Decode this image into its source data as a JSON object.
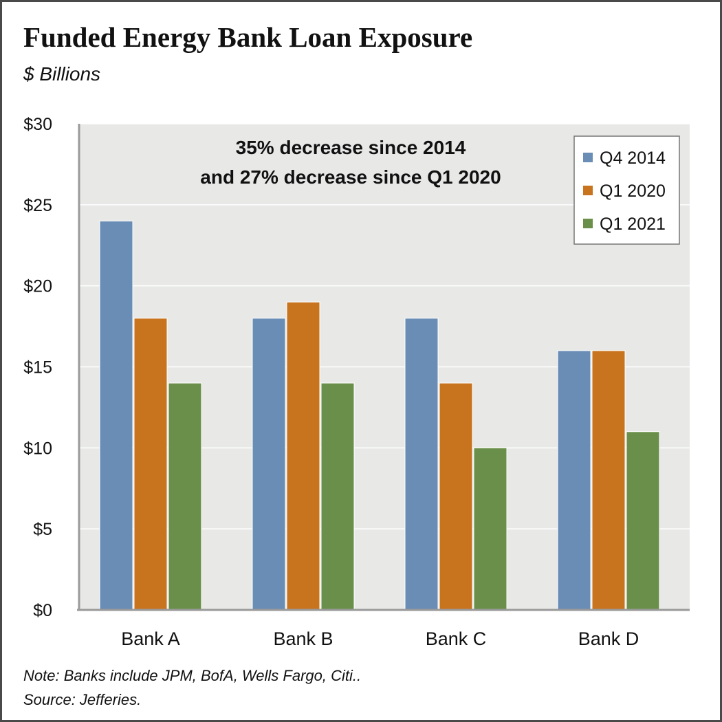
{
  "header": {
    "title": "Funded Energy Bank Loan Exposure",
    "subtitle": "$ Billions"
  },
  "footer": {
    "note": "Note: Banks include JPM, BofA, Wells Fargo, Citi..",
    "source": "Source: Jefferies."
  },
  "chart_data": {
    "type": "bar",
    "title": "Funded Energy Bank Loan Exposure",
    "subtitle": "$ Billions",
    "categories": [
      "Bank A",
      "Bank B",
      "Bank C",
      "Bank D"
    ],
    "series": [
      {
        "name": "Q4 2014",
        "color": "#6a8db5",
        "values": [
          24,
          18,
          18,
          16
        ]
      },
      {
        "name": "Q1 2020",
        "color": "#c8731e",
        "values": [
          18,
          19,
          14,
          16
        ]
      },
      {
        "name": "Q1 2021",
        "color": "#6a8f4a",
        "values": [
          14,
          14,
          10,
          11
        ]
      }
    ],
    "ylim": [
      0,
      30
    ],
    "yticks": [
      0,
      5,
      10,
      15,
      20,
      25,
      30
    ],
    "ytick_labels": [
      "$0",
      "$5",
      "$10",
      "$15",
      "$20",
      "$25",
      "$30"
    ],
    "grid": true,
    "plot_background": "#e8e9e7",
    "legend": {
      "placement": "top-right"
    },
    "annotation": [
      "35% decrease since 2014",
      "and 27% decrease since Q1 2020"
    ]
  }
}
